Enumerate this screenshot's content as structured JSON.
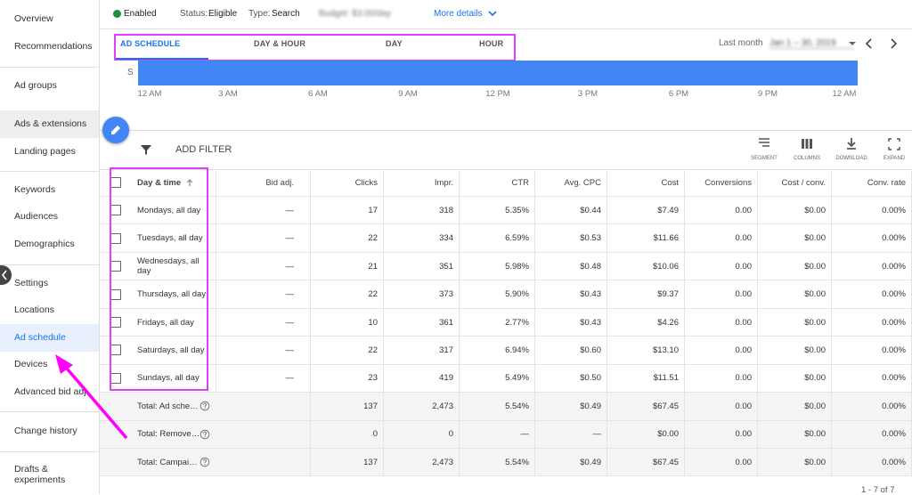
{
  "sidebar": {
    "items": [
      "Overview",
      "Recommendations",
      "Ad groups",
      "Ads & extensions",
      "Landing pages",
      "Keywords",
      "Audiences",
      "Demographics",
      "Settings",
      "Locations",
      "Ad schedule",
      "Devices",
      "Advanced bid adj.",
      "Change history",
      "Drafts & experiments"
    ]
  },
  "header": {
    "status": "Enabled",
    "status_label": "Status:",
    "status_value": "Eligible",
    "type_label": "Type:",
    "type_value": "Search",
    "budget": "Budget: $3.00/day",
    "more": "More details"
  },
  "tabs": {
    "items": [
      "AD SCHEDULE",
      "DAY & HOUR",
      "DAY",
      "HOUR"
    ],
    "date_label": "Last month",
    "date_range": "Jan 1 – 30, 2019"
  },
  "schedule_chart": {
    "row_label": "S",
    "x_labels": [
      "12 AM",
      "3 AM",
      "6 AM",
      "9 AM",
      "12 PM",
      "3 PM",
      "6 PM",
      "9 PM",
      "12 AM"
    ]
  },
  "toolbar": {
    "filter": "ADD FILTER",
    "tools": [
      "SEGMENT",
      "COLUMNS",
      "DOWNLOAD",
      "EXPAND"
    ]
  },
  "table": {
    "columns": [
      "Day & time",
      "Bid adj.",
      "Clicks",
      "Impr.",
      "CTR",
      "Avg. CPC",
      "Cost",
      "Conversions",
      "Cost / conv.",
      "Conv. rate"
    ],
    "rows": [
      [
        "Mondays, all day",
        "—",
        "17",
        "318",
        "5.35%",
        "$0.44",
        "$7.49",
        "0.00",
        "$0.00",
        "0.00%"
      ],
      [
        "Tuesdays, all day",
        "—",
        "22",
        "334",
        "6.59%",
        "$0.53",
        "$11.66",
        "0.00",
        "$0.00",
        "0.00%"
      ],
      [
        "Wednesdays, all day",
        "—",
        "21",
        "351",
        "5.98%",
        "$0.48",
        "$10.06",
        "0.00",
        "$0.00",
        "0.00%"
      ],
      [
        "Thursdays, all day",
        "—",
        "22",
        "373",
        "5.90%",
        "$0.43",
        "$9.37",
        "0.00",
        "$0.00",
        "0.00%"
      ],
      [
        "Fridays, all day",
        "—",
        "10",
        "361",
        "2.77%",
        "$0.43",
        "$4.26",
        "0.00",
        "$0.00",
        "0.00%"
      ],
      [
        "Saturdays, all day",
        "—",
        "22",
        "317",
        "6.94%",
        "$0.60",
        "$13.10",
        "0.00",
        "$0.00",
        "0.00%"
      ],
      [
        "Sundays, all day",
        "—",
        "23",
        "419",
        "5.49%",
        "$0.50",
        "$11.51",
        "0.00",
        "$0.00",
        "0.00%"
      ]
    ],
    "totals": [
      {
        "label": "Total: Ad sche…",
        "values": [
          "137",
          "2,473",
          "5.54%",
          "$0.49",
          "$67.45",
          "0.00",
          "$0.00",
          "0.00%"
        ]
      },
      {
        "label": "Total: Remove…",
        "values": [
          "0",
          "0",
          "—",
          "—",
          "$0.00",
          "0.00",
          "$0.00",
          "0.00%"
        ]
      },
      {
        "label": "Total: Campai…",
        "values": [
          "137",
          "2,473",
          "5.54%",
          "$0.49",
          "$67.45",
          "0.00",
          "$0.00",
          "0.00%"
        ]
      }
    ],
    "pagination": "1 - 7 of 7"
  }
}
